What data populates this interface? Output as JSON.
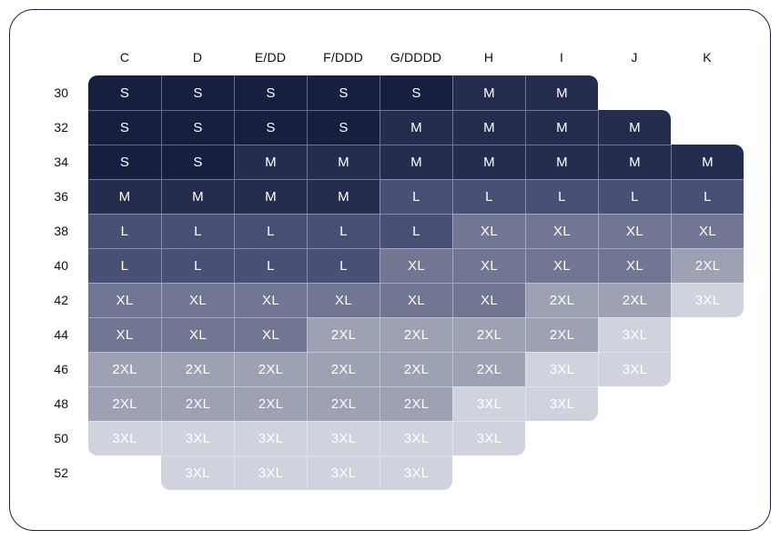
{
  "chart_data": {
    "type": "heatmap",
    "title": "",
    "columns": [
      "C",
      "D",
      "E/DD",
      "F/DDD",
      "G/DDDD",
      "H",
      "I",
      "J",
      "K"
    ],
    "rows": [
      "30",
      "32",
      "34",
      "36",
      "38",
      "40",
      "42",
      "44",
      "46",
      "48",
      "50",
      "52"
    ],
    "cells": [
      [
        "S",
        "S",
        "S",
        "S",
        "S",
        "M",
        "M",
        null,
        null
      ],
      [
        "S",
        "S",
        "S",
        "S",
        "M",
        "M",
        "M",
        "M",
        null
      ],
      [
        "S",
        "S",
        "M",
        "M",
        "M",
        "M",
        "M",
        "M",
        "M"
      ],
      [
        "M",
        "M",
        "M",
        "M",
        "L",
        "L",
        "L",
        "L",
        "L"
      ],
      [
        "L",
        "L",
        "L",
        "L",
        "L",
        "XL",
        "XL",
        "XL",
        "XL"
      ],
      [
        "L",
        "L",
        "L",
        "L",
        "XL",
        "XL",
        "XL",
        "XL",
        "2XL"
      ],
      [
        "XL",
        "XL",
        "XL",
        "XL",
        "XL",
        "XL",
        "2XL",
        "2XL",
        "3XL"
      ],
      [
        "XL",
        "XL",
        "XL",
        "2XL",
        "2XL",
        "2XL",
        "2XL",
        "3XL",
        null
      ],
      [
        "2XL",
        "2XL",
        "2XL",
        "2XL",
        "2XL",
        "2XL",
        "3XL",
        "3XL",
        null
      ],
      [
        "2XL",
        "2XL",
        "2XL",
        "2XL",
        "2XL",
        "3XL",
        "3XL",
        null,
        null
      ],
      [
        "3XL",
        "3XL",
        "3XL",
        "3XL",
        "3XL",
        "3XL",
        null,
        null,
        null
      ],
      [
        null,
        "3XL",
        "3XL",
        "3XL",
        "3XL",
        null,
        null,
        null,
        null
      ]
    ],
    "size_levels": [
      "S",
      "M",
      "L",
      "XL",
      "2XL",
      "3XL"
    ],
    "palette": {
      "S": "#161F3E",
      "M": "#242D4E",
      "L": "#485076",
      "XL": "#717792",
      "2XL": "#9CA1B4",
      "3XL": "#D0D2DE"
    },
    "cell_text_color": "#FFFFFF",
    "label_color": "#0E0E10",
    "grid_line_color": "rgba(255,255,255,0.35)",
    "legend_position": "none",
    "grid": "internal-lines"
  },
  "card": {
    "background": "#FFFFFF",
    "border_color": "#1C2440"
  }
}
